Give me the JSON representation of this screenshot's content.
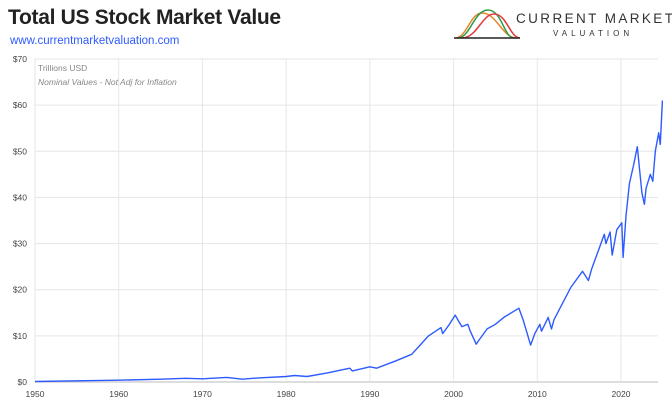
{
  "header": {
    "title": "Total US Stock Market Value",
    "url": "www.currentmarketvaluation.com"
  },
  "logo": {
    "line1": "CURRENT MARKET",
    "line2": "VALUATION",
    "colors": [
      "#e8862a",
      "#2e9e4f",
      "#e23b3b"
    ]
  },
  "chart_data": {
    "type": "line",
    "title": "Total US Stock Market Value",
    "annotations": [
      "Trillions USD",
      "Nominal Values - Not Adj for Inflation"
    ],
    "xlabel": "",
    "ylabel": "",
    "xlim": [
      1950,
      2025.5
    ],
    "ylim": [
      0,
      70
    ],
    "x_ticks": [
      "1950",
      "1960",
      "1970",
      "1980",
      "1990",
      "2000",
      "2010",
      "2020"
    ],
    "y_ticks": [
      "$0",
      "$10",
      "$20",
      "$30",
      "$40",
      "$50",
      "$60",
      "$70"
    ],
    "grid": true,
    "line_color": "#2e5bff",
    "x": [
      1950,
      1955,
      1960,
      1965,
      1968,
      1970,
      1972.9,
      1974.8,
      1976,
      1980,
      1981,
      1982.5,
      1985,
      1987.6,
      1987.9,
      1990,
      1990.8,
      1993,
      1995,
      1996,
      1997,
      1998.5,
      1998.7,
      1999.5,
      2000.2,
      2000.6,
      2001.0,
      2001.7,
      2002.0,
      2002.7,
      2003.0,
      2004,
      2005,
      2006,
      2007.8,
      2008.3,
      2008.8,
      2009.2,
      2009.7,
      2010.3,
      2010.5,
      2011.3,
      2011.7,
      2012,
      2013,
      2014,
      2015.4,
      2016.1,
      2016.5,
      2017,
      2018.0,
      2018.2,
      2018.7,
      2018.95,
      2019.5,
      2020.1,
      2020.25,
      2020.6,
      2021,
      2021.5,
      2021.95,
      2022.5,
      2022.8,
      2023.0,
      2023.5,
      2023.8,
      2024.1,
      2024.5,
      2024.7,
      2024.95
    ],
    "y": [
      0.1,
      0.25,
      0.4,
      0.6,
      0.8,
      0.7,
      1.0,
      0.6,
      0.8,
      1.2,
      1.4,
      1.2,
      2.0,
      3.0,
      2.4,
      3.3,
      3.0,
      4.5,
      6.0,
      8.0,
      10.0,
      11.8,
      10.5,
      12.5,
      14.5,
      13.2,
      12.0,
      12.5,
      11.0,
      8.2,
      9.0,
      11.5,
      12.5,
      14.0,
      16.0,
      13.5,
      10.5,
      8.0,
      10.5,
      12.5,
      11.0,
      14.0,
      11.5,
      13.5,
      17.0,
      20.5,
      24.0,
      22.0,
      24.5,
      27.0,
      32.0,
      30.0,
      32.5,
      27.5,
      33.0,
      34.5,
      27.0,
      36.0,
      43.0,
      47.0,
      51.0,
      41.0,
      38.5,
      42.0,
      45.0,
      43.5,
      50.0,
      54.0,
      51.5,
      61.0
    ]
  }
}
